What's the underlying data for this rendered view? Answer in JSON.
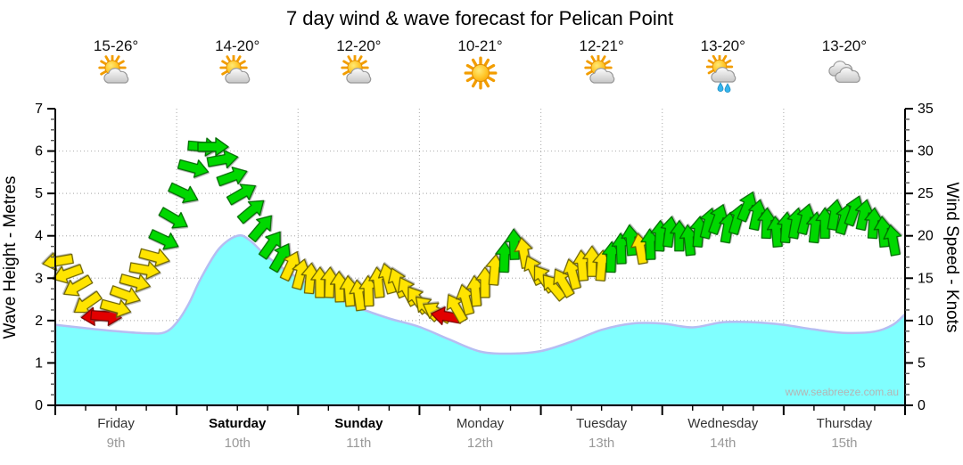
{
  "title": "7 day wind & wave forecast for Pelican Point",
  "watermark": "www.seabreeze.com.au",
  "days": [
    {
      "name": "Friday",
      "date": "9th",
      "temp": "15-26°",
      "icon": "sun-cloud",
      "weekend": false
    },
    {
      "name": "Saturday",
      "date": "10th",
      "temp": "14-20°",
      "icon": "sun-cloud",
      "weekend": true
    },
    {
      "name": "Sunday",
      "date": "11th",
      "temp": "12-20°",
      "icon": "sun-cloud",
      "weekend": true
    },
    {
      "name": "Monday",
      "date": "12th",
      "temp": "10-21°",
      "icon": "sun",
      "weekend": false
    },
    {
      "name": "Tuesday",
      "date": "13th",
      "temp": "12-21°",
      "icon": "sun-cloud",
      "weekend": false
    },
    {
      "name": "Wednesday",
      "date": "14th",
      "temp": "13-20°",
      "icon": "sun-cloud-rain",
      "weekend": false
    },
    {
      "name": "Thursday",
      "date": "15th",
      "temp": "13-20°",
      "icon": "clouds",
      "weekend": false
    }
  ],
  "chart_data": {
    "type": "area",
    "title": "7 day wind & wave forecast for Pelican Point",
    "left_axis": {
      "label": "Wave Height - Metres",
      "min": 0,
      "max": 7,
      "major_ticks": [
        0,
        1,
        2,
        3,
        4,
        5,
        6,
        7
      ],
      "minor_step": 0.25
    },
    "right_axis": {
      "label": "Wind Speed - Knots",
      "min": 0,
      "max": 35,
      "major_ticks": [
        0,
        5,
        10,
        15,
        20,
        25,
        30,
        35
      ],
      "minor_step": 1.25
    },
    "x_axis": {
      "span_days": 7,
      "minor_tick_step_days": 0.25,
      "categories": [
        "Friday",
        "Saturday",
        "Sunday",
        "Monday",
        "Tuesday",
        "Wednesday",
        "Thursday"
      ]
    },
    "grid": {
      "h_lines_m": [
        1,
        2,
        3,
        4,
        5,
        6
      ],
      "v_lines_days": [
        1,
        2,
        3,
        4,
        5,
        6
      ],
      "style": "dotted"
    },
    "wave_height_m": {
      "x_days": [
        0,
        0.25,
        0.5,
        0.75,
        0.9,
        1.0,
        1.1,
        1.2,
        1.35,
        1.5,
        1.6,
        1.75,
        2.0,
        2.25,
        2.5,
        2.75,
        3.0,
        3.25,
        3.5,
        3.75,
        4.0,
        4.25,
        4.5,
        4.75,
        5.0,
        5.25,
        5.5,
        5.75,
        6.0,
        6.25,
        6.5,
        6.75,
        6.9,
        7.0
      ],
      "values": [
        1.9,
        1.82,
        1.75,
        1.7,
        1.72,
        1.95,
        2.4,
        3.0,
        3.7,
        4.0,
        3.9,
        3.5,
        3.0,
        2.62,
        2.3,
        2.05,
        1.85,
        1.55,
        1.27,
        1.22,
        1.28,
        1.5,
        1.78,
        1.93,
        1.93,
        1.84,
        1.96,
        1.96,
        1.9,
        1.79,
        1.71,
        1.74,
        1.9,
        2.15
      ]
    },
    "wind_arrows": {
      "x_days": [
        0.02,
        0.1,
        0.18,
        0.26,
        0.34,
        0.42,
        0.5,
        0.58,
        0.66,
        0.74,
        0.82,
        0.9,
        0.98,
        1.06,
        1.14,
        1.22,
        1.3,
        1.38,
        1.46,
        1.54,
        1.62,
        1.7,
        1.78,
        1.86,
        1.94,
        2.02,
        2.1,
        2.18,
        2.26,
        2.34,
        2.42,
        2.5,
        2.58,
        2.66,
        2.74,
        2.82,
        2.9,
        2.98,
        3.06,
        3.14,
        3.22,
        3.3,
        3.38,
        3.46,
        3.54,
        3.62,
        3.7,
        3.78,
        3.86,
        3.94,
        4.02,
        4.1,
        4.18,
        4.26,
        4.34,
        4.42,
        4.5,
        4.58,
        4.66,
        4.74,
        4.82,
        4.9,
        4.98,
        5.06,
        5.14,
        5.22,
        5.3,
        5.38,
        5.46,
        5.54,
        5.62,
        5.7,
        5.78,
        5.86,
        5.94,
        6.02,
        6.1,
        6.18,
        6.26,
        6.34,
        6.42,
        6.5,
        6.58,
        6.66,
        6.74,
        6.82,
        6.9
      ],
      "knots": [
        17,
        15.5,
        14,
        12,
        10.5,
        10.5,
        11.5,
        13,
        14.5,
        16,
        17.5,
        19.5,
        22,
        25,
        28,
        30.5,
        30.5,
        29,
        27,
        25,
        23,
        21,
        19,
        17.5,
        16.5,
        15.5,
        15,
        14.5,
        14.5,
        14,
        13.5,
        13,
        13.5,
        14.5,
        15,
        14.5,
        13.5,
        12.5,
        11.5,
        11,
        10.5,
        11.5,
        12.5,
        13.5,
        14.5,
        16,
        17.5,
        19,
        18,
        16,
        15,
        14,
        14.5,
        15.5,
        16.5,
        17,
        16.5,
        17.5,
        18.5,
        19.5,
        18.5,
        19,
        20,
        20.5,
        20,
        19.5,
        20.5,
        21.5,
        22,
        21,
        22,
        23.5,
        22.5,
        21.5,
        20.5,
        21,
        21.5,
        22,
        21,
        21.5,
        22.5,
        22,
        23,
        22.5,
        21.5,
        20.5,
        19.5
      ],
      "dir_deg": [
        190,
        200,
        210,
        215,
        185,
        355,
        345,
        340,
        345,
        350,
        345,
        335,
        330,
        335,
        345,
        355,
        0,
        10,
        20,
        30,
        40,
        50,
        55,
        60,
        65,
        75,
        85,
        90,
        88,
        92,
        95,
        98,
        92,
        96,
        105,
        112,
        118,
        125,
        135,
        150,
        170,
        120,
        105,
        95,
        90,
        85,
        88,
        92,
        100,
        115,
        125,
        130,
        120,
        105,
        95,
        90,
        85,
        88,
        92,
        95,
        100,
        92,
        88,
        82,
        90,
        96,
        85,
        76,
        70,
        80,
        74,
        68,
        78,
        88,
        95,
        86,
        80,
        76,
        84,
        90,
        80,
        74,
        70,
        78,
        86,
        95,
        100
      ],
      "color": [
        "y",
        "y",
        "y",
        "y",
        "r",
        "r",
        "y",
        "y",
        "y",
        "y",
        "y",
        "g",
        "g",
        "g",
        "g",
        "g",
        "g",
        "g",
        "g",
        "g",
        "g",
        "g",
        "g",
        "g",
        "y",
        "y",
        "y",
        "y",
        "y",
        "y",
        "y",
        "y",
        "y",
        "y",
        "y",
        "y",
        "y",
        "y",
        "y",
        "y",
        "r",
        "y",
        "y",
        "y",
        "y",
        "y",
        "g",
        "g",
        "y",
        "y",
        "y",
        "y",
        "y",
        "y",
        "y",
        "y",
        "y",
        "g",
        "g",
        "g",
        "y",
        "g",
        "g",
        "g",
        "g",
        "g",
        "g",
        "g",
        "g",
        "g",
        "g",
        "g",
        "g",
        "g",
        "g",
        "g",
        "g",
        "g",
        "g",
        "g",
        "g",
        "g",
        "g",
        "g",
        "g",
        "g",
        "g"
      ]
    },
    "colors": {
      "wave_fill": "#80ffff",
      "wave_edge": "#b6bdf2",
      "arrow_yellow": "#ffe400",
      "arrow_green": "#00d800",
      "arrow_red": "#e20000",
      "grid": "#b5b5b5",
      "axis": "#000000"
    }
  }
}
